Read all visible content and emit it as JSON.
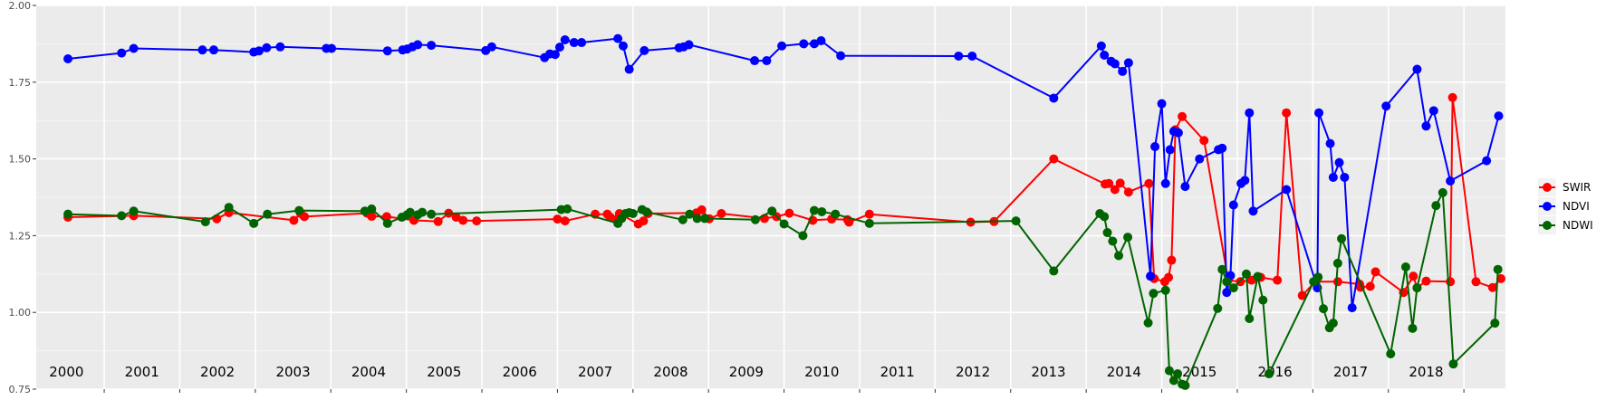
{
  "chart_data": {
    "type": "line",
    "title": "",
    "xlabel": "",
    "ylabel": "",
    "xlim": [
      1999.6,
      2019.05
    ],
    "ylim": [
      0.75,
      2.0
    ],
    "y_ticks": [
      "0.75",
      "1.00",
      "1.25",
      "1.50",
      "1.75",
      "2.00"
    ],
    "year_labels": [
      "2000",
      "2001",
      "2002",
      "2003",
      "2004",
      "2005",
      "2006",
      "2007",
      "2008",
      "2009",
      "2010",
      "2011",
      "2012",
      "2013",
      "2014",
      "2015",
      "2016",
      "2017",
      "2018"
    ],
    "grid": true,
    "legend_position": "right",
    "series": [
      {
        "name": "SWIR",
        "color": "#ff0000",
        "x": [
          2000.02,
          2000.89,
          2001.99,
          2002.15,
          2003.01,
          2003.1,
          2003.15,
          2003.98,
          2004.04,
          2004.24,
          2004.6,
          2004.92,
          2005.06,
          2005.16,
          2005.25,
          2005.43,
          2006.5,
          2006.6,
          2007.0,
          2007.16,
          2007.2,
          2007.29,
          2007.32,
          2007.57,
          2007.64,
          2007.7,
          2008.34,
          2008.41,
          2008.51,
          2008.67,
          2009.24,
          2009.4,
          2009.57,
          2009.88,
          2010.13,
          2010.34,
          2010.36,
          2010.63,
          2011.97,
          2012.28,
          2013.07,
          2013.75,
          2013.8,
          2013.88,
          2013.95,
          2014.06,
          2014.33,
          2014.4,
          2014.54,
          2014.59,
          2014.63,
          2014.68,
          2014.77,
          2015.06,
          2015.38,
          2015.54,
          2015.69,
          2015.81,
          2016.03,
          2016.15,
          2016.36,
          2016.53,
          2016.83,
          2017.12,
          2017.13,
          2017.26,
          2017.33,
          2017.7,
          2017.83,
          2017.88,
          2018.0,
          2018.32,
          2018.35,
          2018.66,
          2018.88,
          2018.99
        ],
        "values": [
          1.31,
          1.315,
          1.305,
          1.325,
          1.3,
          1.322,
          1.312,
          1.323,
          1.313,
          1.312,
          1.3,
          1.296,
          1.323,
          1.31,
          1.3,
          1.298,
          1.304,
          1.298,
          1.32,
          1.32,
          1.31,
          1.303,
          1.322,
          1.288,
          1.298,
          1.322,
          1.324,
          1.334,
          1.305,
          1.322,
          1.306,
          1.312,
          1.323,
          1.3,
          1.304,
          1.302,
          1.294,
          1.32,
          1.294,
          1.296,
          1.5,
          1.418,
          1.42,
          1.4,
          1.421,
          1.392,
          1.42,
          1.11,
          1.1,
          1.114,
          1.17,
          1.595,
          1.638,
          1.56,
          1.105,
          1.1,
          1.105,
          1.114,
          1.105,
          1.65,
          1.055,
          1.1,
          1.1,
          1.092,
          1.082,
          1.085,
          1.132,
          1.065,
          1.118,
          1.08,
          1.102,
          1.1,
          1.7,
          1.1,
          1.081,
          1.11
        ]
      },
      {
        "name": "NDVI",
        "color": "#0000ff",
        "x": [
          2000.02,
          2000.73,
          2000.89,
          2001.8,
          2001.95,
          2002.48,
          2002.55,
          2002.65,
          2002.83,
          2003.44,
          2003.51,
          2004.25,
          2004.45,
          2004.51,
          2004.58,
          2004.65,
          2004.83,
          2005.55,
          2005.63,
          2006.33,
          2006.4,
          2006.47,
          2006.53,
          2006.6,
          2006.72,
          2006.82,
          2007.3,
          2007.37,
          2007.45,
          2007.65,
          2008.11,
          2008.17,
          2008.24,
          2009.11,
          2009.27,
          2009.47,
          2009.76,
          2009.9,
          2009.99,
          2010.25,
          2011.81,
          2011.99,
          2013.07,
          2013.7,
          2013.74,
          2013.83,
          2013.88,
          2013.98,
          2014.06,
          2014.35,
          2014.41,
          2014.5,
          2014.55,
          2014.61,
          2014.66,
          2014.72,
          2014.81,
          2015.0,
          2015.25,
          2015.3,
          2015.36,
          2015.41,
          2015.45,
          2015.55,
          2015.6,
          2015.66,
          2015.71,
          2016.15,
          2016.56,
          2016.58,
          2016.73,
          2016.77,
          2016.85,
          2016.92,
          2017.02,
          2017.47,
          2017.88,
          2018.0,
          2018.1,
          2018.32,
          2018.8,
          2018.96
        ],
        "values": [
          1.826,
          1.845,
          1.86,
          1.855,
          1.855,
          1.848,
          1.852,
          1.862,
          1.865,
          1.86,
          1.86,
          1.852,
          1.855,
          1.858,
          1.865,
          1.872,
          1.87,
          1.853,
          1.865,
          1.83,
          1.842,
          1.84,
          1.864,
          1.888,
          1.879,
          1.879,
          1.892,
          1.868,
          1.792,
          1.853,
          1.862,
          1.865,
          1.872,
          1.82,
          1.82,
          1.868,
          1.875,
          1.875,
          1.885,
          1.836,
          1.835,
          1.835,
          1.698,
          1.868,
          1.838,
          1.818,
          1.81,
          1.785,
          1.813,
          1.118,
          1.54,
          1.68,
          1.42,
          1.53,
          1.59,
          1.585,
          1.41,
          1.5,
          1.53,
          1.535,
          1.065,
          1.12,
          1.35,
          1.42,
          1.43,
          1.65,
          1.33,
          1.4,
          1.08,
          1.65,
          1.55,
          1.44,
          1.488,
          1.44,
          1.015,
          1.672,
          1.792,
          1.607,
          1.657,
          1.428,
          1.494,
          1.64
        ]
      },
      {
        "name": "NDWI",
        "color": "#006400",
        "x": [
          2000.02,
          2000.73,
          2000.89,
          2001.84,
          2002.15,
          2002.48,
          2002.66,
          2003.08,
          2003.95,
          2004.04,
          2004.25,
          2004.44,
          2004.51,
          2004.55,
          2004.65,
          2004.71,
          2004.83,
          2006.55,
          2006.63,
          2007.3,
          2007.35,
          2007.4,
          2007.45,
          2007.5,
          2007.62,
          2007.68,
          2008.16,
          2008.25,
          2008.35,
          2008.45,
          2009.12,
          2009.34,
          2009.5,
          2009.75,
          2009.9,
          2010.0,
          2010.18,
          2010.63,
          2012.57,
          2013.07,
          2013.68,
          2013.74,
          2013.78,
          2013.85,
          2013.93,
          2014.05,
          2014.32,
          2014.39,
          2014.55,
          2014.6,
          2014.66,
          2014.71,
          2014.77,
          2014.81,
          2015.24,
          2015.3,
          2015.36,
          2015.45,
          2015.62,
          2015.66,
          2015.77,
          2015.84,
          2015.92,
          2016.51,
          2016.57,
          2016.64,
          2016.72,
          2016.77,
          2016.83,
          2016.88,
          2017.53,
          2017.73,
          2017.82,
          2017.88,
          2018.13,
          2018.22,
          2018.36,
          2018.91,
          2018.95
        ],
        "values": [
          1.32,
          1.315,
          1.33,
          1.295,
          1.342,
          1.29,
          1.32,
          1.332,
          1.33,
          1.337,
          1.29,
          1.31,
          1.318,
          1.326,
          1.318,
          1.326,
          1.32,
          1.335,
          1.337,
          1.29,
          1.306,
          1.322,
          1.325,
          1.322,
          1.335,
          1.327,
          1.302,
          1.32,
          1.306,
          1.306,
          1.302,
          1.33,
          1.288,
          1.25,
          1.332,
          1.328,
          1.32,
          1.29,
          1.298,
          1.135,
          1.322,
          1.312,
          1.26,
          1.232,
          1.185,
          1.245,
          0.966,
          1.062,
          1.072,
          0.81,
          0.778,
          0.8,
          0.766,
          0.762,
          1.013,
          1.14,
          1.1,
          1.08,
          1.125,
          0.98,
          1.117,
          1.04,
          0.8,
          1.1,
          1.115,
          1.012,
          0.95,
          0.965,
          1.16,
          1.24,
          0.865,
          1.148,
          0.948,
          1.08,
          1.348,
          1.39,
          0.832,
          0.965,
          1.14
        ]
      }
    ]
  }
}
